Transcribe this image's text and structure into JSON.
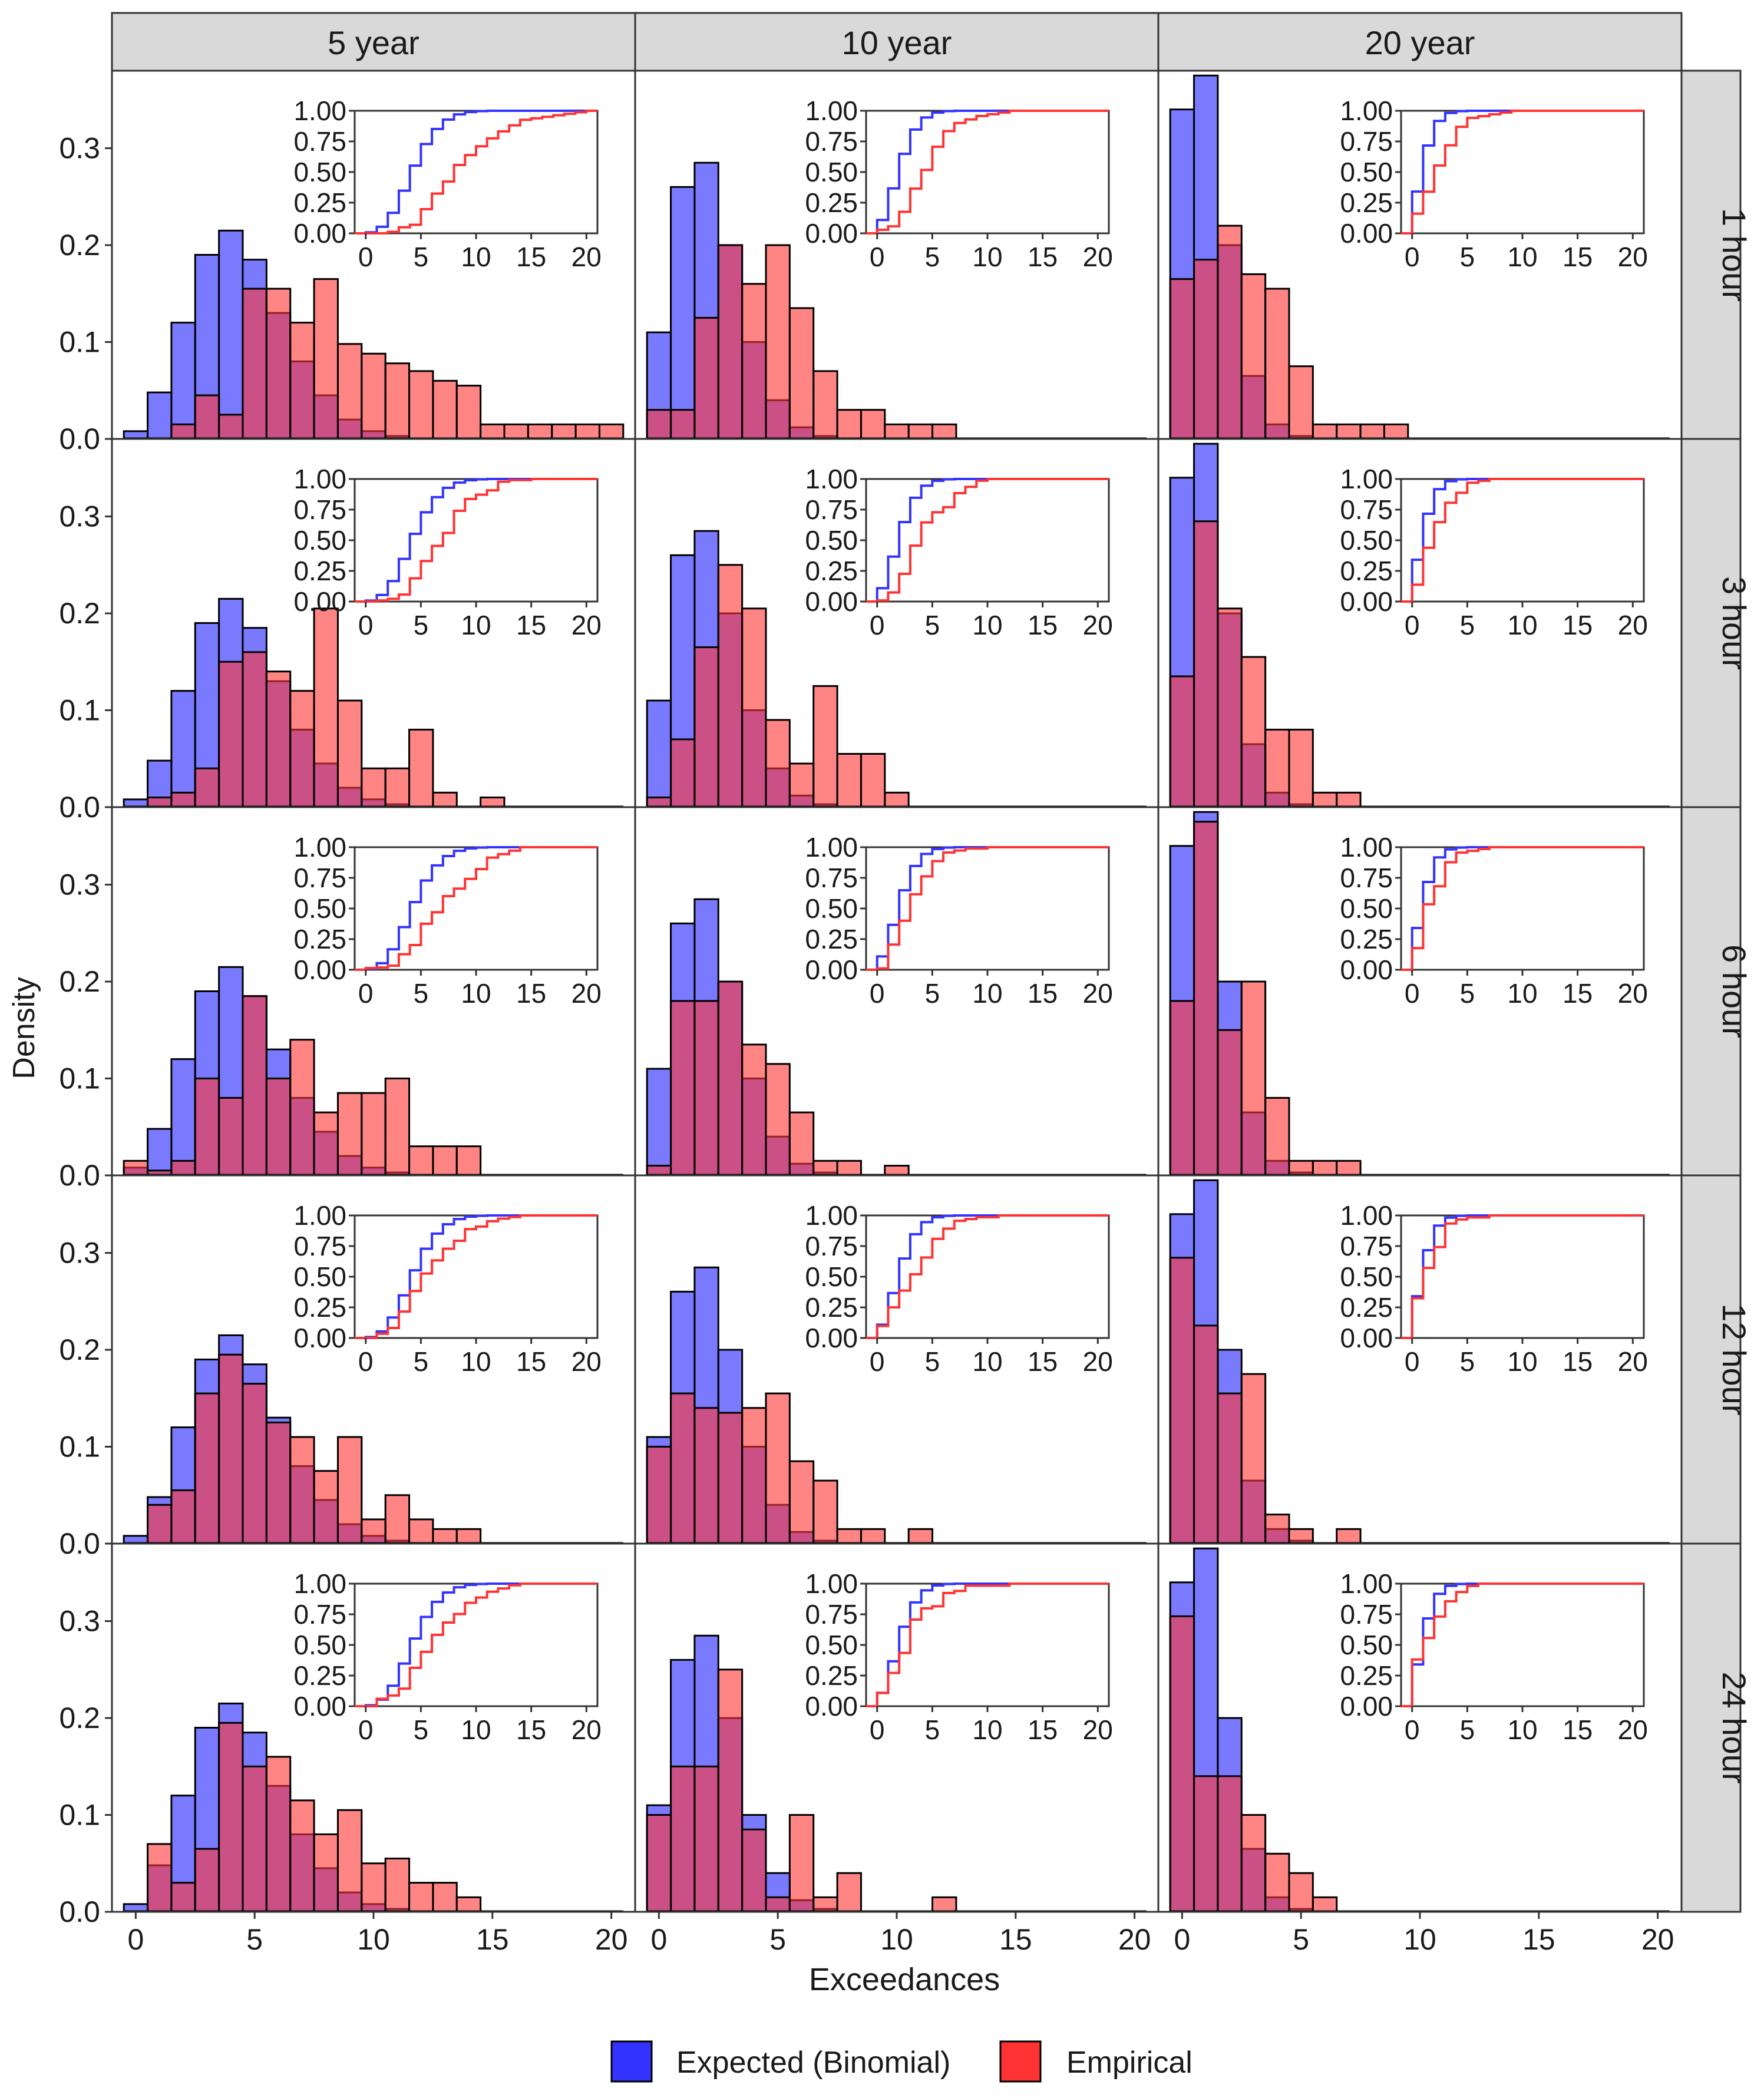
{
  "chart_data": {
    "type": "bar",
    "title": "",
    "xlabel": "Exceedances",
    "ylabel": "Density",
    "xlim": [
      -1,
      21
    ],
    "ylim": [
      0,
      0.38
    ],
    "xticks": [
      0,
      5,
      10,
      15,
      20
    ],
    "yticks": [
      0.0,
      0.1,
      0.2,
      0.3
    ],
    "column_labels": [
      "5 year",
      "10 year",
      "20 year"
    ],
    "row_labels": [
      "1 hour",
      "3 hour",
      "6 hour",
      "12 hour",
      "24 hour"
    ],
    "legend": {
      "position": "bottom",
      "entries": [
        {
          "name": "Expected (Binomial)",
          "color": "#3333ff"
        },
        {
          "name": "Empirical",
          "color": "#ff3333"
        }
      ]
    },
    "inset": {
      "type": "step-cdf",
      "xlim": [
        -1,
        21
      ],
      "ylim": [
        0,
        1
      ],
      "xticks": [
        0,
        5,
        10,
        15,
        20
      ],
      "yticks": [
        0.0,
        0.25,
        0.5,
        0.75,
        1.0
      ]
    },
    "colors": {
      "expected": "#3333ff",
      "empirical": "#ff3333",
      "strip": "#d9d9d9"
    },
    "panels": [
      {
        "column": "5 year",
        "row": "1 hour",
        "x_start": 0,
        "expected": [
          0.008,
          0.048,
          0.12,
          0.19,
          0.215,
          0.185,
          0.13,
          0.08,
          0.045,
          0.02,
          0.008,
          0.003
        ],
        "empirical": [
          0,
          0,
          0.015,
          0.045,
          0.025,
          0.155,
          0.155,
          0.12,
          0.165,
          0.098,
          0.088,
          0.078,
          0.07,
          0.06,
          0.055,
          0.015,
          0.015,
          0.015,
          0.015,
          0.015,
          0.015
        ]
      },
      {
        "column": "10 year",
        "row": "1 hour",
        "x_start": 0,
        "expected": [
          0.11,
          0.26,
          0.285,
          0.2,
          0.1,
          0.04,
          0.012,
          0.003
        ],
        "empirical": [
          0.03,
          0.03,
          0.125,
          0.2,
          0.16,
          0.2,
          0.135,
          0.07,
          0.03,
          0.03,
          0.015,
          0.015,
          0.015
        ]
      },
      {
        "column": "20 year",
        "row": "1 hour",
        "x_start": 0,
        "expected": [
          0.34,
          0.375,
          0.2,
          0.065,
          0.015,
          0.003
        ],
        "empirical": [
          0.165,
          0.185,
          0.22,
          0.17,
          0.155,
          0.075,
          0.015,
          0.015,
          0.015,
          0.015
        ]
      },
      {
        "column": "5 year",
        "row": "3 hour",
        "x_start": 0,
        "expected": [
          0.008,
          0.048,
          0.12,
          0.19,
          0.215,
          0.185,
          0.13,
          0.08,
          0.045,
          0.02,
          0.008,
          0.003
        ],
        "empirical": [
          0,
          0.01,
          0.015,
          0.04,
          0.15,
          0.16,
          0.14,
          0.12,
          0.205,
          0.11,
          0.04,
          0.04,
          0.08,
          0.015,
          0,
          0.01
        ]
      },
      {
        "column": "10 year",
        "row": "3 hour",
        "x_start": 0,
        "expected": [
          0.11,
          0.26,
          0.285,
          0.2,
          0.1,
          0.04,
          0.012,
          0.003
        ],
        "empirical": [
          0.01,
          0.07,
          0.165,
          0.25,
          0.205,
          0.09,
          0.045,
          0.125,
          0.055,
          0.055,
          0.015
        ]
      },
      {
        "column": "20 year",
        "row": "3 hour",
        "x_start": 0,
        "expected": [
          0.34,
          0.375,
          0.2,
          0.065,
          0.015,
          0.003
        ],
        "empirical": [
          0.135,
          0.295,
          0.205,
          0.155,
          0.08,
          0.08,
          0.015,
          0.015
        ]
      },
      {
        "column": "5 year",
        "row": "6 hour",
        "x_start": 0,
        "expected": [
          0.008,
          0.048,
          0.12,
          0.19,
          0.215,
          0.185,
          0.13,
          0.08,
          0.045,
          0.02,
          0.008,
          0.003
        ],
        "empirical": [
          0.015,
          0.005,
          0.015,
          0.1,
          0.08,
          0.185,
          0.1,
          0.14,
          0.065,
          0.085,
          0.085,
          0.1,
          0.03,
          0.03,
          0.03
        ]
      },
      {
        "column": "10 year",
        "row": "6 hour",
        "x_start": 0,
        "expected": [
          0.11,
          0.26,
          0.285,
          0.2,
          0.1,
          0.04,
          0.012,
          0.003
        ],
        "empirical": [
          0.01,
          0.18,
          0.18,
          0.2,
          0.135,
          0.115,
          0.065,
          0.015,
          0.015,
          0,
          0.01
        ]
      },
      {
        "column": "20 year",
        "row": "6 hour",
        "x_start": 0,
        "expected": [
          0.34,
          0.375,
          0.2,
          0.065,
          0.015,
          0.003
        ],
        "empirical": [
          0.18,
          0.365,
          0.15,
          0.2,
          0.08,
          0.015,
          0.015,
          0.015
        ]
      },
      {
        "column": "5 year",
        "row": "12 hour",
        "x_start": 0,
        "expected": [
          0.008,
          0.048,
          0.12,
          0.19,
          0.215,
          0.185,
          0.13,
          0.08,
          0.045,
          0.02,
          0.008,
          0.003
        ],
        "empirical": [
          0,
          0.04,
          0.055,
          0.155,
          0.195,
          0.165,
          0.125,
          0.11,
          0.075,
          0.11,
          0.025,
          0.05,
          0.025,
          0.015,
          0.015
        ]
      },
      {
        "column": "10 year",
        "row": "12 hour",
        "x_start": 0,
        "expected": [
          0.11,
          0.26,
          0.285,
          0.2,
          0.1,
          0.04,
          0.012,
          0.003
        ],
        "empirical": [
          0.1,
          0.155,
          0.14,
          0.135,
          0.14,
          0.155,
          0.085,
          0.065,
          0.015,
          0.015,
          0,
          0.015
        ]
      },
      {
        "column": "20 year",
        "row": "12 hour",
        "x_start": 0,
        "expected": [
          0.34,
          0.375,
          0.2,
          0.065,
          0.015,
          0.003
        ],
        "empirical": [
          0.295,
          0.225,
          0.155,
          0.175,
          0.03,
          0.015,
          0,
          0.015
        ]
      },
      {
        "column": "5 year",
        "row": "24 hour",
        "x_start": 0,
        "expected": [
          0.008,
          0.048,
          0.12,
          0.19,
          0.215,
          0.185,
          0.13,
          0.08,
          0.045,
          0.02,
          0.008,
          0.003
        ],
        "empirical": [
          0,
          0.07,
          0.03,
          0.065,
          0.195,
          0.15,
          0.16,
          0.115,
          0.08,
          0.105,
          0.05,
          0.055,
          0.03,
          0.03,
          0.015
        ]
      },
      {
        "column": "10 year",
        "row": "24 hour",
        "x_start": 0,
        "expected": [
          0.11,
          0.26,
          0.285,
          0.2,
          0.1,
          0.04,
          0.012,
          0.003
        ],
        "empirical": [
          0.1,
          0.15,
          0.15,
          0.25,
          0.085,
          0.015,
          0.1,
          0.015,
          0.04,
          0,
          0,
          0,
          0.015
        ]
      },
      {
        "column": "20 year",
        "row": "24 hour",
        "x_start": 0,
        "expected": [
          0.34,
          0.375,
          0.2,
          0.065,
          0.015,
          0.003
        ],
        "empirical": [
          0.305,
          0.14,
          0.14,
          0.1,
          0.06,
          0.04,
          0.015
        ]
      }
    ]
  },
  "axes": {
    "xlabel": "Exceedances",
    "ylabel": "Density",
    "yticklabels": [
      "0.0",
      "0.1",
      "0.2",
      "0.3"
    ],
    "xticklabels": [
      "0",
      "5",
      "10",
      "15",
      "20"
    ],
    "inset_yticklabels": [
      "0.00",
      "0.25",
      "0.50",
      "0.75",
      "1.00"
    ],
    "inset_xticklabels": [
      "0",
      "5",
      "10",
      "15",
      "20"
    ]
  },
  "legend": {
    "expected_label": "Expected (Binomial)",
    "empirical_label": "Empirical"
  }
}
